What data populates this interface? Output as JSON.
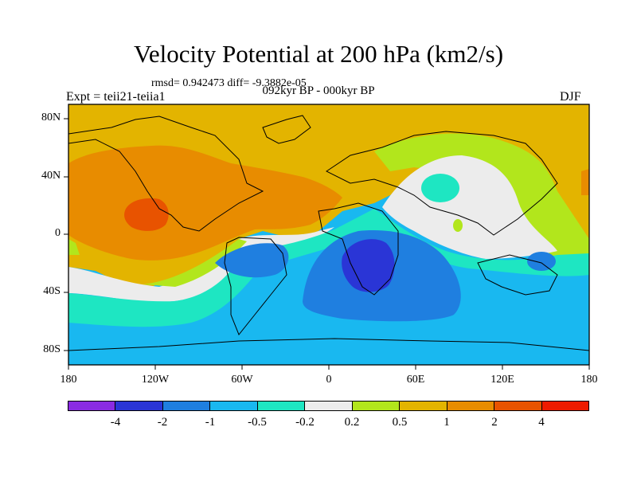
{
  "header": {
    "title": "Velocity Potential at 200 hPa (km2/s)",
    "stats": "rmsd= 0.942473 diff= -9.3882e-05",
    "subtitle": "092kyr BP - 000kyr BP",
    "left_label": "Expt = teii21-teiia1",
    "right_label": "DJF"
  },
  "axes": {
    "lat_labels": [
      "80N",
      "40N",
      "0",
      "40S",
      "80S"
    ],
    "lon_labels": [
      "180",
      "120W",
      "60W",
      "0",
      "60E",
      "120E",
      "180"
    ]
  },
  "colorbar": {
    "labels": [
      "-4",
      "-2",
      "-1",
      "-0.5",
      "-0.2",
      "0.2",
      "0.5",
      "1",
      "2",
      "4"
    ],
    "colors": [
      "#8a2be2",
      "#2a35d6",
      "#1f7fe0",
      "#19b8f0",
      "#1ee6c2",
      "#ececec",
      "#b2e61c",
      "#e3b400",
      "#e88c00",
      "#e85300",
      "#ee1b00"
    ]
  }
}
